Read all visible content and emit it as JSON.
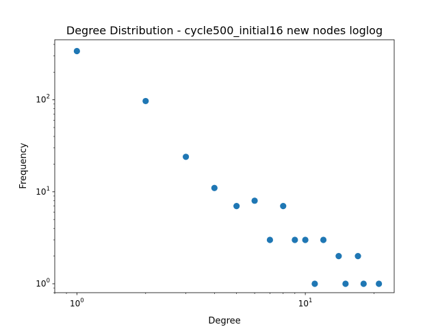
{
  "chart_data": {
    "type": "scatter",
    "title": "Degree Distribution - cycle500_initial16 new nodes loglog",
    "xlabel": "Degree",
    "ylabel": "Frequency",
    "xscale": "log",
    "yscale": "log",
    "xlim": [
      0.8,
      24.5
    ],
    "ylim": [
      0.8,
      450
    ],
    "grid": false,
    "marker_color": "#1f77b4",
    "x_ticks": [
      {
        "base": "10",
        "exp": "0",
        "value": 1
      },
      {
        "base": "10",
        "exp": "1",
        "value": 10
      }
    ],
    "y_ticks": [
      {
        "base": "10",
        "exp": "0",
        "value": 1
      },
      {
        "base": "10",
        "exp": "1",
        "value": 10
      },
      {
        "base": "10",
        "exp": "2",
        "value": 100
      }
    ],
    "points": [
      {
        "x": 1,
        "y": 339
      },
      {
        "x": 2,
        "y": 97
      },
      {
        "x": 3,
        "y": 24
      },
      {
        "x": 4,
        "y": 11
      },
      {
        "x": 5,
        "y": 7
      },
      {
        "x": 6,
        "y": 8
      },
      {
        "x": 7,
        "y": 3
      },
      {
        "x": 8,
        "y": 7
      },
      {
        "x": 9,
        "y": 3
      },
      {
        "x": 10,
        "y": 3
      },
      {
        "x": 11,
        "y": 1
      },
      {
        "x": 12,
        "y": 3
      },
      {
        "x": 14,
        "y": 2
      },
      {
        "x": 15,
        "y": 1
      },
      {
        "x": 17,
        "y": 2
      },
      {
        "x": 18,
        "y": 1
      },
      {
        "x": 21,
        "y": 1
      }
    ]
  }
}
